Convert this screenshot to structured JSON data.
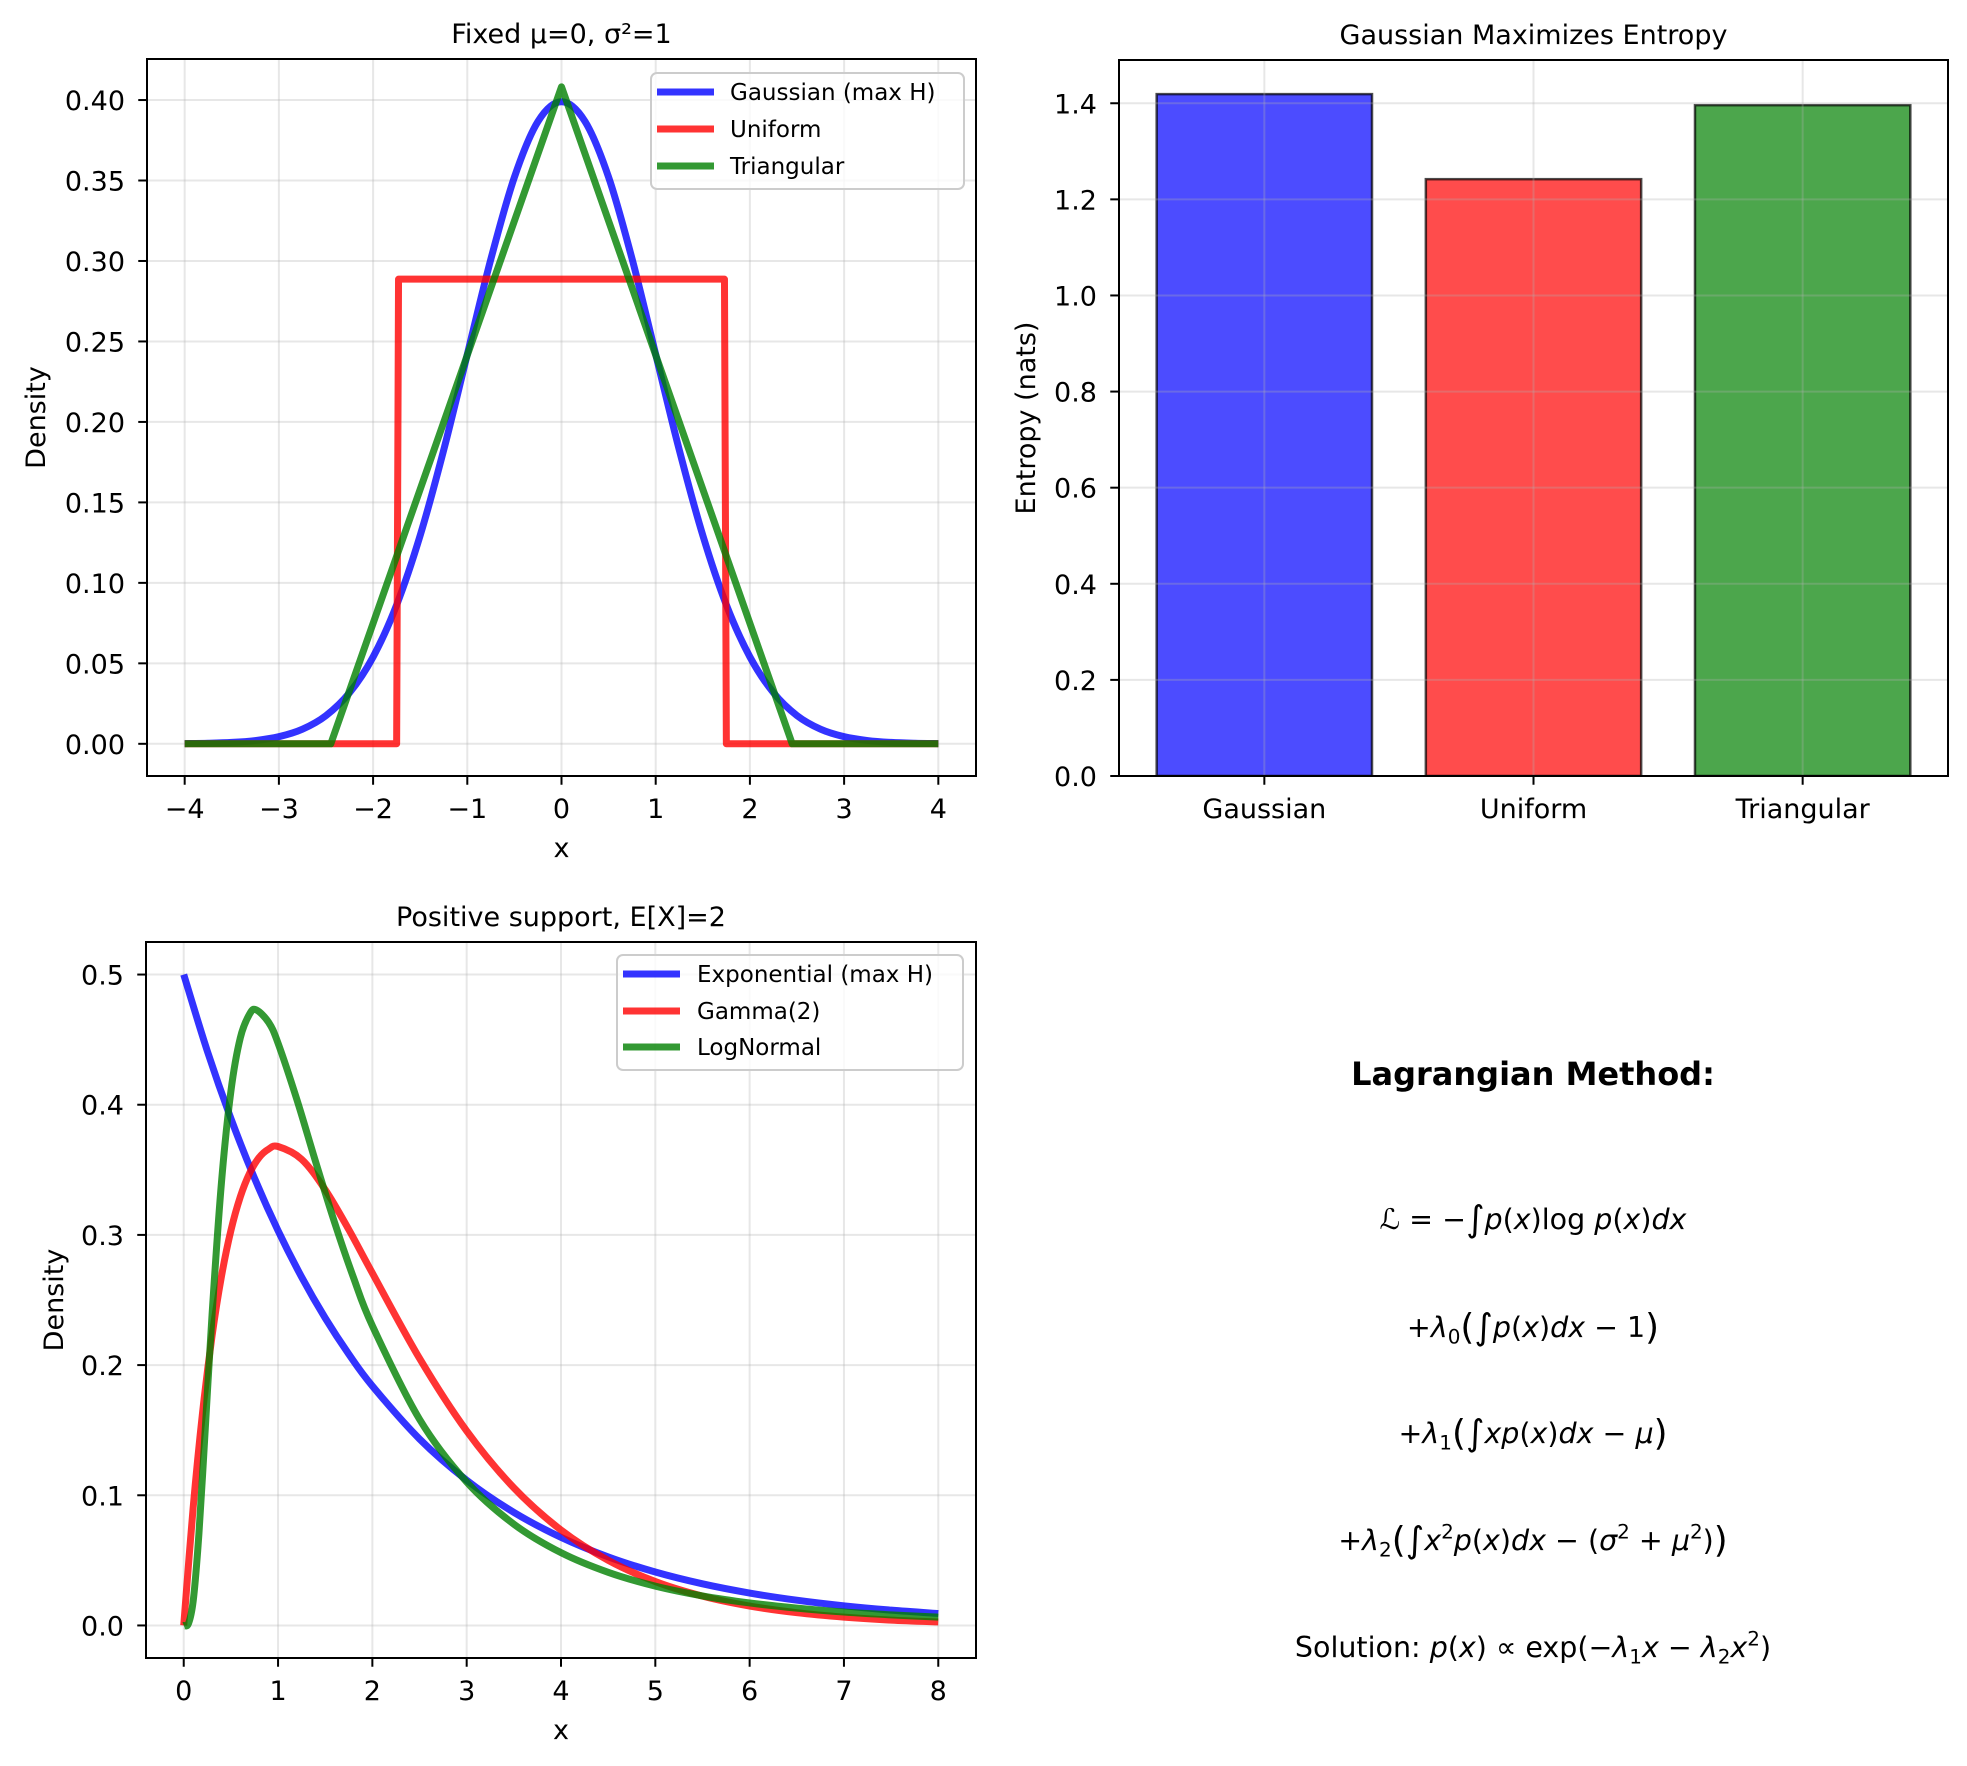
{
  "chart_data": [
    {
      "type": "line",
      "title": "Fixed μ=0, σ²=1",
      "xlabel": "x",
      "ylabel": "Density",
      "xlim": [
        -4.4,
        4.4
      ],
      "ylim": [
        -0.02,
        0.4255
      ],
      "xticks": [
        -4,
        -3,
        -2,
        -1,
        0,
        1,
        2,
        3,
        4
      ],
      "xtick_labels": [
        "−4",
        "−3",
        "−2",
        "−1",
        "0",
        "1",
        "2",
        "3",
        "4"
      ],
      "yticks": [
        0,
        0.05,
        0.1,
        0.15,
        0.2,
        0.25,
        0.3,
        0.35,
        0.4
      ],
      "ytick_labels": [
        "0.00",
        "0.05",
        "0.10",
        "0.15",
        "0.20",
        "0.25",
        "0.30",
        "0.35",
        "0.40"
      ],
      "grid": true,
      "legend": "upper right",
      "series": [
        {
          "name": "Gaussian (max H)",
          "color": "#0000ff",
          "x": [
            -4,
            -3.75,
            -3.5,
            -3.25,
            -3,
            -2.75,
            -2.5,
            -2.25,
            -2,
            -1.75,
            -1.5,
            -1.25,
            -1,
            -0.75,
            -0.5,
            -0.25,
            0,
            0.25,
            0.5,
            0.75,
            1,
            1.25,
            1.5,
            1.75,
            2,
            2.25,
            2.5,
            2.75,
            3,
            3.25,
            3.5,
            3.75,
            4
          ],
          "y": [
            0.00013,
            0.00035,
            0.00087,
            0.00203,
            0.00443,
            0.00909,
            0.01753,
            0.03174,
            0.05399,
            0.08628,
            0.12952,
            0.18265,
            0.24197,
            0.30114,
            0.35207,
            0.38667,
            0.39894,
            0.38667,
            0.35207,
            0.30114,
            0.24197,
            0.18265,
            0.12952,
            0.08628,
            0.05399,
            0.03174,
            0.01753,
            0.00909,
            0.00443,
            0.00203,
            0.00087,
            0.00035,
            0.00013
          ]
        },
        {
          "name": "Uniform",
          "color": "#ff0000",
          "x": [
            -4,
            -1.75,
            -1.73,
            1.73,
            1.75,
            4
          ],
          "y": [
            0,
            0,
            0.2887,
            0.2887,
            0,
            0
          ]
        },
        {
          "name": "Triangular",
          "color": "#008000",
          "x": [
            -4,
            -2.449,
            0,
            2.449,
            4
          ],
          "y": [
            0,
            0,
            0.4082,
            0,
            0
          ]
        }
      ]
    },
    {
      "type": "bar",
      "title": "Gaussian Maximizes Entropy",
      "xlabel": "",
      "ylabel": "Entropy (nats)",
      "categories": [
        "Gaussian",
        "Uniform",
        "Triangular"
      ],
      "values": [
        1.419,
        1.242,
        1.396
      ],
      "colors": [
        "#0000ff",
        "#ff0000",
        "#008000"
      ],
      "edgecolor": "#000000",
      "xlim": [
        -0.54,
        2.54
      ],
      "ylim": [
        0,
        1.49
      ],
      "yticks": [
        0,
        0.2,
        0.4,
        0.6,
        0.8,
        1.0,
        1.2,
        1.4
      ],
      "ytick_labels": [
        "0.0",
        "0.2",
        "0.4",
        "0.6",
        "0.8",
        "1.0",
        "1.2",
        "1.4"
      ],
      "grid": true
    },
    {
      "type": "line",
      "title": "Positive support, E[X]=2",
      "xlabel": "x",
      "ylabel": "Density",
      "xlim": [
        -0.4,
        8.4
      ],
      "ylim": [
        -0.025,
        0.525
      ],
      "xticks": [
        0,
        1,
        2,
        3,
        4,
        5,
        6,
        7,
        8
      ],
      "xtick_labels": [
        "0",
        "1",
        "2",
        "3",
        "4",
        "5",
        "6",
        "7",
        "8"
      ],
      "yticks": [
        0,
        0.1,
        0.2,
        0.3,
        0.4,
        0.5
      ],
      "ytick_labels": [
        "0.0",
        "0.1",
        "0.2",
        "0.3",
        "0.4",
        "0.5"
      ],
      "grid": true,
      "legend": "upper right",
      "series": [
        {
          "name": "Exponential (max H)",
          "color": "#0000ff",
          "x": [
            0,
            0.25,
            0.5,
            0.75,
            1,
            1.25,
            1.5,
            1.75,
            2,
            2.5,
            3,
            3.5,
            4,
            4.5,
            5,
            5.5,
            6,
            6.5,
            7,
            7.5,
            8
          ],
          "y": [
            0.5,
            0.44125,
            0.3894,
            0.34365,
            0.30327,
            0.26763,
            0.23618,
            0.20843,
            0.18394,
            0.14325,
            0.11157,
            0.08689,
            0.06767,
            0.0527,
            0.04104,
            0.03197,
            0.02489,
            0.01939,
            0.0151,
            0.01176,
            0.00916
          ]
        },
        {
          "name": "Gamma(2)",
          "color": "#ff0000",
          "x": [
            0,
            0.1,
            0.2,
            0.3,
            0.4,
            0.5,
            0.6,
            0.7,
            0.8,
            0.9,
            1,
            1.25,
            1.5,
            1.75,
            2,
            2.5,
            3,
            3.5,
            4,
            4.5,
            5,
            5.5,
            6,
            6.5,
            7,
            7.5,
            8
          ],
          "y": [
            0,
            0.0905,
            0.1637,
            0.2222,
            0.2681,
            0.3033,
            0.3293,
            0.3476,
            0.3595,
            0.3659,
            0.3679,
            0.3581,
            0.3347,
            0.3041,
            0.2707,
            0.2052,
            0.1494,
            0.1057,
            0.0733,
            0.05,
            0.0337,
            0.0225,
            0.0149,
            0.0098,
            0.0064,
            0.0041,
            0.0027
          ]
        },
        {
          "name": "LogNormal",
          "color": "#008000",
          "x": [
            0,
            0.05,
            0.1,
            0.15,
            0.2,
            0.3,
            0.4,
            0.5,
            0.6,
            0.7,
            0.77,
            0.9,
            1,
            1.2,
            1.4,
            1.6,
            1.8,
            2,
            2.5,
            3,
            3.5,
            4,
            4.5,
            5,
            5.5,
            6,
            6.5,
            7,
            7.5,
            8
          ],
          "y": [
            0,
            0.0014,
            0.0186,
            0.0593,
            0.1157,
            0.2382,
            0.3401,
            0.4103,
            0.4514,
            0.4699,
            0.4728,
            0.4633,
            0.4473,
            0.4039,
            0.3558,
            0.3094,
            0.2672,
            0.2302,
            0.1584,
            0.1102,
            0.0778,
            0.0559,
            0.0408,
            0.0302,
            0.0227,
            0.0173,
            0.0133,
            0.0103,
            0.0081,
            0.0064
          ]
        }
      ]
    }
  ],
  "text_panel": {
    "title": "Lagrangian Method:",
    "lines": [
      {
        "segments": [
          {
            "t": "ℒ",
            "italic": true
          },
          {
            "t": " = −"
          },
          {
            "t": "∫",
            "big": true
          },
          {
            "t": "p",
            "italic": true
          },
          {
            "t": "("
          },
          {
            "t": "x",
            "italic": true
          },
          {
            "t": ")log "
          },
          {
            "t": "p",
            "italic": true
          },
          {
            "t": "("
          },
          {
            "t": "x",
            "italic": true
          },
          {
            "t": ")"
          },
          {
            "t": "dx",
            "italic": true
          }
        ]
      },
      {
        "segments": [
          {
            "t": "+"
          },
          {
            "t": "λ",
            "italic": true
          },
          {
            "t": "0",
            "sub": true
          },
          {
            "t": "(",
            "big": true
          },
          {
            "t": "∫",
            "big": true
          },
          {
            "t": "p",
            "italic": true
          },
          {
            "t": "("
          },
          {
            "t": "x",
            "italic": true
          },
          {
            "t": ")"
          },
          {
            "t": "dx",
            "italic": true
          },
          {
            "t": " − 1"
          },
          {
            "t": ")",
            "big": true
          }
        ]
      },
      {
        "segments": [
          {
            "t": "+"
          },
          {
            "t": "λ",
            "italic": true
          },
          {
            "t": "1",
            "sub": true
          },
          {
            "t": "(",
            "big": true
          },
          {
            "t": "∫",
            "big": true
          },
          {
            "t": "xp",
            "italic": true
          },
          {
            "t": "("
          },
          {
            "t": "x",
            "italic": true
          },
          {
            "t": ")"
          },
          {
            "t": "dx",
            "italic": true
          },
          {
            "t": " − "
          },
          {
            "t": "μ",
            "italic": true
          },
          {
            "t": ")",
            "big": true
          }
        ]
      },
      {
        "segments": [
          {
            "t": "+"
          },
          {
            "t": "λ",
            "italic": true
          },
          {
            "t": "2",
            "sub": true
          },
          {
            "t": "(",
            "big": true
          },
          {
            "t": "∫",
            "big": true
          },
          {
            "t": "x",
            "italic": true
          },
          {
            "t": "2",
            "sup": true
          },
          {
            "t": "p",
            "italic": true
          },
          {
            "t": "("
          },
          {
            "t": "x",
            "italic": true
          },
          {
            "t": ")"
          },
          {
            "t": "dx",
            "italic": true
          },
          {
            "t": " − ("
          },
          {
            "t": "σ",
            "italic": true
          },
          {
            "t": "2",
            "sup": true
          },
          {
            "t": " + "
          },
          {
            "t": "μ",
            "italic": true
          },
          {
            "t": "2",
            "sup": true
          },
          {
            "t": ")"
          },
          {
            "t": ")",
            "big": true
          }
        ]
      }
    ],
    "solution": {
      "color": "#0000ff",
      "segments": [
        {
          "t": "Solution: "
        },
        {
          "t": "p",
          "italic": true
        },
        {
          "t": "("
        },
        {
          "t": "x",
          "italic": true
        },
        {
          "t": ") ∝ exp(−"
        },
        {
          "t": "λ",
          "italic": true
        },
        {
          "t": "1",
          "sub": true
        },
        {
          "t": "x",
          "italic": true
        },
        {
          "t": " − "
        },
        {
          "t": "λ",
          "italic": true
        },
        {
          "t": "2",
          "sub": true
        },
        {
          "t": "x",
          "italic": true
        },
        {
          "t": "2",
          "sup": true
        },
        {
          "t": ")"
        }
      ]
    }
  }
}
